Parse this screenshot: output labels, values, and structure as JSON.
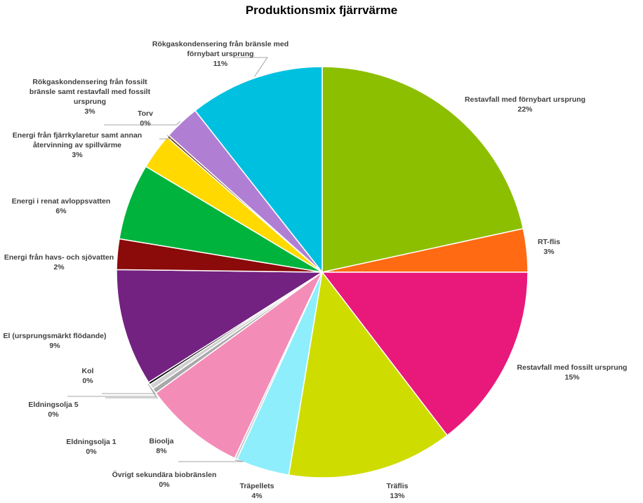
{
  "chart_data": {
    "type": "pie",
    "title": "Produktionsmix fjärrvärme",
    "categories": [
      "Restavfall med förnybart ursprung",
      "RT-flis",
      "Restavfall med fossilt ursprung",
      "Träflis",
      "Träpellets",
      "Övrigt sekundära biobränslen",
      "Bioolja",
      "Eldningsolja 1",
      "Eldningsolja 5",
      "Kol",
      "El (ursprungsmärkt flödande)",
      "Energi från havs- och sjövatten",
      "Energi i renat avloppsvatten",
      "Energi från fjärrkylaretur samt annan återvinning av spillvärme",
      "Torv",
      "Rökgaskondensering från fossilt bränsle samt restavfall med fossilt ursprung",
      "Rökgaskondensering från bränsle med förnybart ursprung"
    ],
    "values": [
      21.6,
      3.4,
      14.6,
      13.0,
      4.2,
      0.2,
      8.0,
      0.4,
      0.4,
      0.2,
      9.2,
      2.4,
      6.0,
      2.8,
      0.2,
      2.8,
      10.6
    ],
    "value_labels": [
      "22%",
      "3%",
      "15%",
      "13%",
      "4%",
      "0%",
      "8%",
      "0%",
      "0%",
      "0%",
      "9%",
      "2%",
      "6%",
      "3%",
      "0%",
      "3%",
      "11%"
    ],
    "colors": [
      "#8cbf00",
      "#ff6a13",
      "#e8197b",
      "#cfdc00",
      "#8eeefb",
      "#c8c8c8",
      "#f48cb8",
      "#a8a8a8",
      "#d0d0d0",
      "#111111",
      "#732281",
      "#8b0a0a",
      "#00b33c",
      "#ffd900",
      "#7a4a2a",
      "#b07fd4",
      "#00c0e0"
    ]
  }
}
